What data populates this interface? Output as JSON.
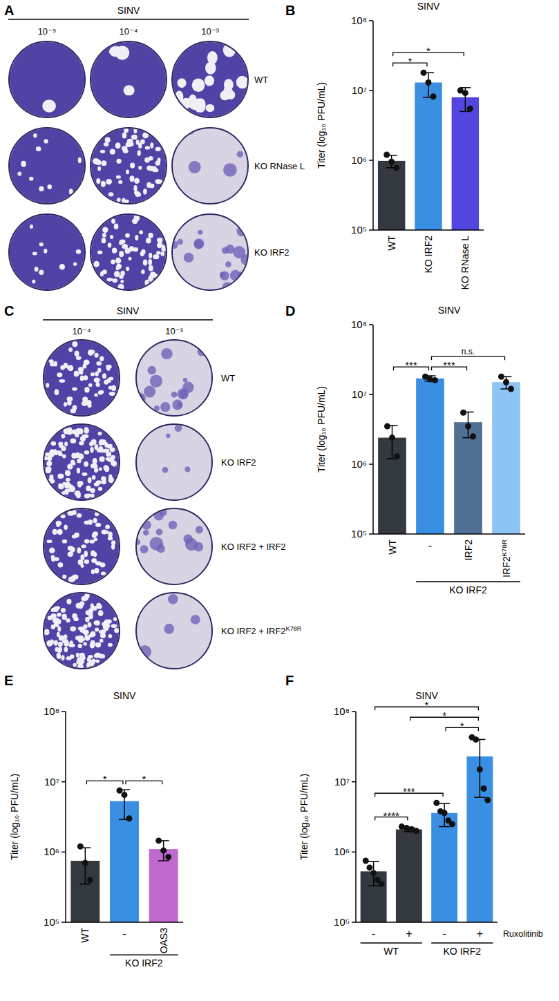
{
  "plaque_panels": [
    {
      "panel": "A",
      "title": "SINV",
      "dilutions": [
        "10⁻⁵",
        "10⁻⁴",
        "10⁻³"
      ],
      "rows": [
        "WT",
        "KO RNase L",
        "KO IRF2"
      ],
      "row_superscripts": [
        null,
        null,
        null
      ]
    },
    {
      "panel": "C",
      "title": "SINV",
      "dilutions": [
        "10⁻⁴",
        "10⁻³"
      ],
      "rows": [
        "WT",
        "KO IRF2",
        "KO IRF2 + IRF2",
        "KO IRF2 + IRF2"
      ],
      "row_superscripts": [
        null,
        null,
        null,
        "K78R"
      ]
    }
  ],
  "chart_data": [
    {
      "panel": "B",
      "type": "bar",
      "title": "SINV",
      "ylabel": "Titer (log₁₀ PFU/mL)",
      "log": "y",
      "ylim": [
        100000,
        100000000
      ],
      "yticks": [
        {
          "value": 100000,
          "label": "10⁵"
        },
        {
          "value": 1000000,
          "label": "10⁶"
        },
        {
          "value": 10000000,
          "label": "10⁷"
        },
        {
          "value": 100000000,
          "label": "10⁸"
        }
      ],
      "categories": [
        "WT",
        "KO IRF2",
        "KO RNase L"
      ],
      "category_superscripts": [
        null,
        null,
        null
      ],
      "colors": [
        "#33393e",
        "#3a8fe3",
        "#5346e0"
      ],
      "values": [
        980000,
        13000000,
        8000000
      ],
      "errors": [
        200000,
        5000000,
        3000000
      ],
      "points": [
        [
          1200000,
          950000,
          780000
        ],
        [
          18000000,
          13000000,
          8200000
        ],
        [
          10000000,
          9200000,
          5500000
        ]
      ],
      "comparisons": [
        {
          "from": 0,
          "to": 1,
          "label": "*"
        },
        {
          "from": 0,
          "to": 2,
          "label": "*"
        }
      ],
      "groups": []
    },
    {
      "panel": "D",
      "type": "bar",
      "title": "SINV",
      "ylabel": "Titer (log₁₀ PFU/mL)",
      "log": "y",
      "ylim": [
        100000,
        100000000
      ],
      "yticks": [
        {
          "value": 100000,
          "label": "10⁵"
        },
        {
          "value": 1000000,
          "label": "10⁶"
        },
        {
          "value": 10000000,
          "label": "10⁷"
        },
        {
          "value": 100000000,
          "label": "10⁸"
        }
      ],
      "categories": [
        "WT",
        "-",
        "IRF2",
        "IRF2"
      ],
      "category_superscripts": [
        null,
        null,
        null,
        "K78R"
      ],
      "colors": [
        "#33393e",
        "#3a8fe3",
        "#4f6f93",
        "#8ec4f5"
      ],
      "values": [
        2400000,
        17000000,
        4000000,
        15000000
      ],
      "errors": [
        1200000,
        1500000,
        1600000,
        3000000
      ],
      "points": [
        [
          3500000,
          2400000,
          1300000
        ],
        [
          18000000,
          16500000,
          16000000
        ],
        [
          5500000,
          3500000,
          2500000
        ],
        [
          18000000,
          15000000,
          12000000
        ]
      ],
      "comparisons": [
        {
          "from": 0,
          "to": 1,
          "label": "***"
        },
        {
          "from": 1,
          "to": 2,
          "label": "***"
        },
        {
          "from": 1,
          "to": 3,
          "label": "n.s."
        }
      ],
      "groups": [
        {
          "label": "KO IRF2",
          "from": 1,
          "to": 3
        }
      ]
    },
    {
      "panel": "E",
      "type": "bar",
      "title": "SINV",
      "ylabel": "Titer (log₁₀ PFU/mL)",
      "log": "y",
      "ylim": [
        100000,
        100000000
      ],
      "yticks": [
        {
          "value": 100000,
          "label": "10⁵"
        },
        {
          "value": 1000000,
          "label": "10⁶"
        },
        {
          "value": 10000000,
          "label": "10⁷"
        },
        {
          "value": 100000000,
          "label": "10⁸"
        }
      ],
      "categories": [
        "WT",
        "-",
        "OAS3"
      ],
      "category_superscripts": [
        null,
        null,
        null
      ],
      "colors": [
        "#33393e",
        "#3a8fe3",
        "#c06ad0"
      ],
      "values": [
        750000,
        5300000,
        1100000
      ],
      "errors": [
        400000,
        2400000,
        350000
      ],
      "points": [
        [
          1200000,
          700000,
          400000
        ],
        [
          7500000,
          6500000,
          3000000
        ],
        [
          1450000,
          1050000,
          850000
        ]
      ],
      "comparisons": [
        {
          "from": 0,
          "to": 1,
          "label": "*"
        },
        {
          "from": 1,
          "to": 2,
          "label": "*"
        }
      ],
      "groups": [
        {
          "label": "KO IRF2",
          "from": 1,
          "to": 2
        }
      ]
    },
    {
      "panel": "F",
      "type": "bar",
      "title": "SINV",
      "ylabel": "Titer (log₁₀ PFU/mL)",
      "xlabel": "Ruxolitinib",
      "log": "y",
      "ylim": [
        100000,
        100000000
      ],
      "yticks": [
        {
          "value": 100000,
          "label": "10⁵"
        },
        {
          "value": 1000000,
          "label": "10⁶"
        },
        {
          "value": 10000000,
          "label": "10⁷"
        },
        {
          "value": 100000000,
          "label": "10⁸"
        }
      ],
      "categories": [
        "-",
        "+",
        "-",
        "+"
      ],
      "category_superscripts": [
        null,
        null,
        null,
        null
      ],
      "colors": [
        "#33393e",
        "#33393e",
        "#3a8fe3",
        "#3a8fe3"
      ],
      "values": [
        530000,
        2100000,
        3600000,
        23000000
      ],
      "errors": [
        200000,
        150000,
        1300000,
        17000000
      ],
      "points": [
        [
          750000,
          600000,
          500000,
          400000,
          350000
        ],
        [
          2300000,
          2200000,
          2100000,
          2000000
        ],
        [
          5000000,
          3800000,
          3600000,
          2800000,
          2500000
        ],
        [
          43000000,
          40000000,
          15000000,
          8000000,
          5500000
        ]
      ],
      "comparisons": [
        {
          "from": 0,
          "to": 1,
          "label": "****"
        },
        {
          "from": 0,
          "to": 2,
          "label": "***"
        },
        {
          "from": 2,
          "to": 3,
          "label": "*"
        },
        {
          "from": 1,
          "to": 3,
          "label": "*"
        },
        {
          "from": 0,
          "to": 3,
          "label": "*"
        }
      ],
      "groups": [
        {
          "label": "WT",
          "from": 0,
          "to": 1
        },
        {
          "label": "KO IRF2",
          "from": 2,
          "to": 3
        }
      ]
    }
  ]
}
